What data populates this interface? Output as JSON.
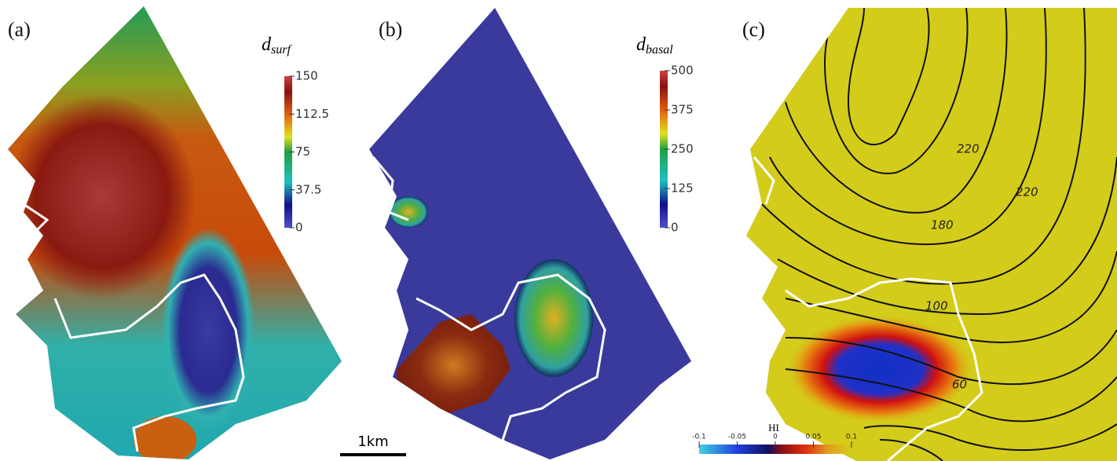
{
  "panels": [
    {
      "label": "(a)",
      "colorbar": {
        "title": {
          "main": "d",
          "sub": "surf"
        },
        "lim": [
          0,
          150
        ],
        "ticks": [
          0,
          37.5,
          75,
          112.5,
          150
        ]
      }
    },
    {
      "label": "(b)",
      "colorbar": {
        "title": {
          "main": "d",
          "sub": "basal"
        },
        "lim": [
          0,
          500
        ],
        "ticks": [
          0,
          125,
          250,
          375,
          500
        ]
      }
    },
    {
      "label": "(c)",
      "colorbar": {
        "title": "HI",
        "lim": [
          -0.1,
          0.1
        ],
        "ticks": [
          -0.1,
          -0.05,
          0,
          0.05,
          0.1
        ]
      },
      "contour_labels": [
        220,
        220,
        180,
        100,
        60
      ]
    }
  ],
  "scale_bar": "1km"
}
